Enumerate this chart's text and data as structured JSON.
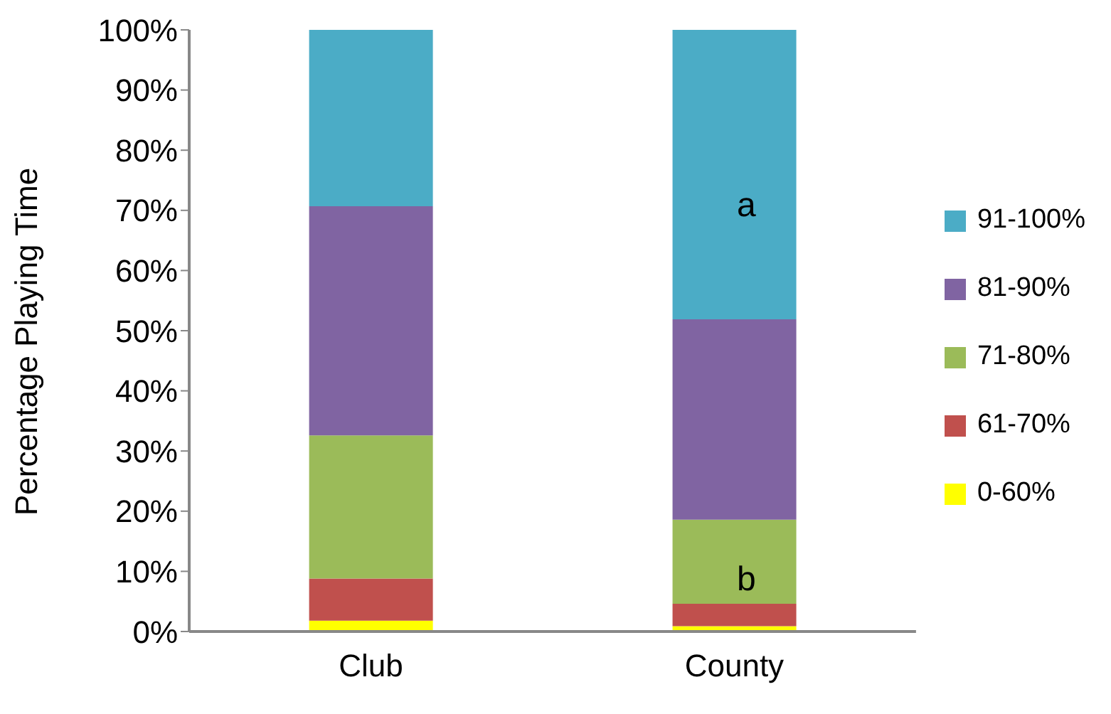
{
  "chart_data": {
    "type": "bar",
    "stacked": true,
    "ylabel": "Percentage Playing Time",
    "categories": [
      "Club",
      "County"
    ],
    "series": [
      {
        "name": "0-60%",
        "color": "#ffff00",
        "values": [
          1.8,
          0.9
        ]
      },
      {
        "name": "61-70%",
        "color": "#c0504d",
        "values": [
          7.0,
          3.7
        ]
      },
      {
        "name": "71-80%",
        "color": "#9bbb59",
        "values": [
          23.8,
          14.0
        ]
      },
      {
        "name": "81-90%",
        "color": "#8064a2",
        "values": [
          38.1,
          33.3
        ]
      },
      {
        "name": "91-100%",
        "color": "#4bacc6",
        "values": [
          29.3,
          48.1
        ]
      }
    ],
    "ylim": [
      0,
      100
    ],
    "yticks": [
      {
        "value": 0,
        "label": "0%"
      },
      {
        "value": 10,
        "label": "10%"
      },
      {
        "value": 20,
        "label": "20%"
      },
      {
        "value": 30,
        "label": "30%"
      },
      {
        "value": 40,
        "label": "40%"
      },
      {
        "value": 50,
        "label": "50%"
      },
      {
        "value": 60,
        "label": "60%"
      },
      {
        "value": 70,
        "label": "70%"
      },
      {
        "value": 80,
        "label": "80%"
      },
      {
        "value": 90,
        "label": "90%"
      },
      {
        "value": 100,
        "label": "100%"
      }
    ],
    "grid": false,
    "legend": "right",
    "annotations": [
      "a",
      "b"
    ]
  }
}
